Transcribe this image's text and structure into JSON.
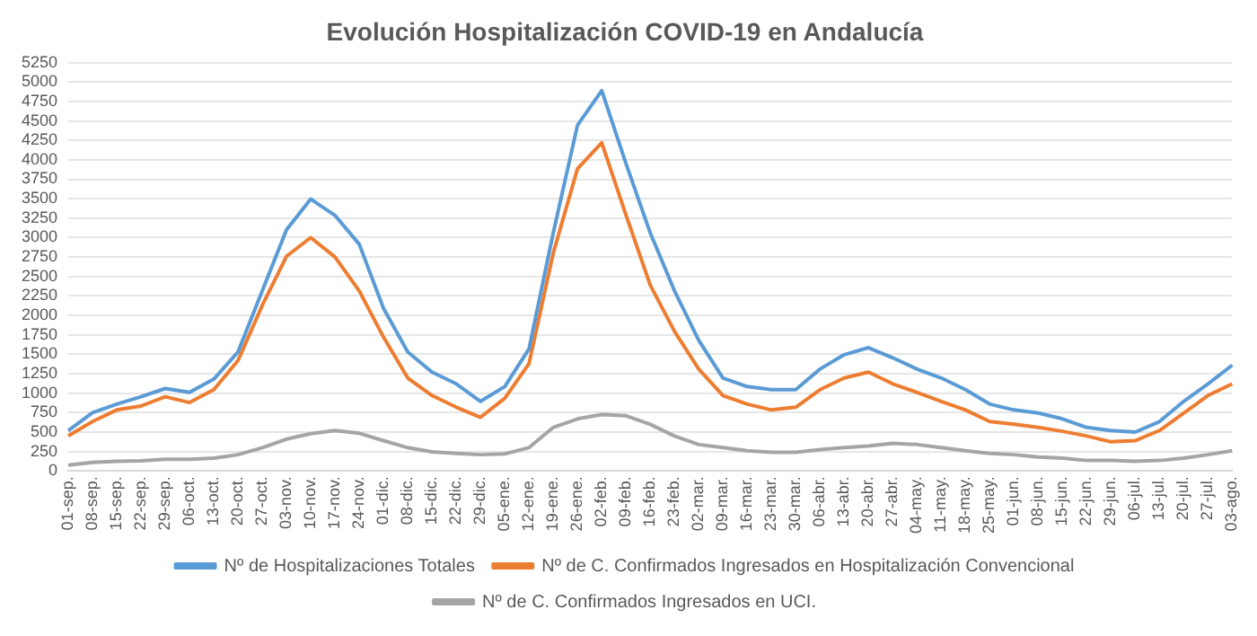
{
  "chart_data": {
    "type": "line",
    "title": "Evolución Hospitalización COVID-19 en Andalucía",
    "categories": [
      "01-sep.",
      "08-sep.",
      "15-sep.",
      "22-sep.",
      "29-sep.",
      "06-oct.",
      "13-oct.",
      "20-oct.",
      "27-oct.",
      "03-nov.",
      "10-nov.",
      "17-nov.",
      "24-nov.",
      "01-dic.",
      "08-dic.",
      "15-dic.",
      "22-dic.",
      "29-dic.",
      "05-ene.",
      "12-ene.",
      "19-ene.",
      "26-ene.",
      "02-feb.",
      "09-feb.",
      "16-feb.",
      "23-feb.",
      "02-mar.",
      "09-mar.",
      "16-mar.",
      "23-mar.",
      "30-mar.",
      "06-abr.",
      "13-abr.",
      "20-abr.",
      "27-abr.",
      "04-may.",
      "11-may.",
      "18-may.",
      "25-may.",
      "01-jun.",
      "08-jun.",
      "15-jun.",
      "22-jun.",
      "29-jun.",
      "06-jul.",
      "13-jul.",
      "20-jul.",
      "27-jul.",
      "03-ago."
    ],
    "series": [
      {
        "name": "Nº de Hospitalizaciones Totales",
        "color": "#5b9bd5",
        "values": [
          520,
          750,
          860,
          955,
          1060,
          1010,
          1180,
          1530,
          2315,
          3100,
          3495,
          3285,
          2915,
          2090,
          1530,
          1270,
          1120,
          895,
          1085,
          1570,
          3060,
          4445,
          4890,
          3950,
          3060,
          2315,
          1680,
          1195,
          1085,
          1045,
          1045,
          1310,
          1495,
          1585,
          1455,
          1310,
          1195,
          1045,
          860,
          785,
          745,
          670,
          560,
          520,
          500,
          635,
          895,
          1120,
          1360
        ]
      },
      {
        "name": "Nº de C. Confirmados Ingresados en Hospitalización Convencional",
        "color": "#ed7d31",
        "values": [
          450,
          635,
          785,
          835,
          955,
          880,
          1045,
          1420,
          2130,
          2760,
          3000,
          2750,
          2315,
          1720,
          1195,
          970,
          820,
          690,
          935,
          1380,
          2800,
          3885,
          4220,
          3290,
          2390,
          1795,
          1310,
          970,
          860,
          785,
          820,
          1045,
          1195,
          1270,
          1120,
          1010,
          895,
          785,
          635,
          600,
          560,
          510,
          450,
          375,
          390,
          520,
          745,
          970,
          1120
        ]
      },
      {
        "name": "Nº de C. Confirmados Ingresados en UCI.",
        "color": "#a5a5a5",
        "values": [
          75,
          110,
          125,
          130,
          150,
          150,
          165,
          210,
          300,
          410,
          480,
          520,
          485,
          390,
          300,
          245,
          225,
          210,
          220,
          300,
          560,
          670,
          725,
          710,
          600,
          450,
          340,
          300,
          260,
          240,
          240,
          275,
          300,
          320,
          355,
          340,
          300,
          260,
          225,
          210,
          180,
          165,
          135,
          135,
          125,
          135,
          165,
          210,
          260
        ]
      }
    ],
    "ylim": [
      0,
      5250
    ],
    "yticks": [
      0,
      250,
      500,
      750,
      1000,
      1250,
      1500,
      1750,
      2000,
      2250,
      2500,
      2750,
      3000,
      3250,
      3500,
      3750,
      4000,
      4250,
      4500,
      4750,
      5000,
      5250
    ],
    "grid": "y",
    "legend": "bottom",
    "marker": "none",
    "line_style": "solid"
  }
}
